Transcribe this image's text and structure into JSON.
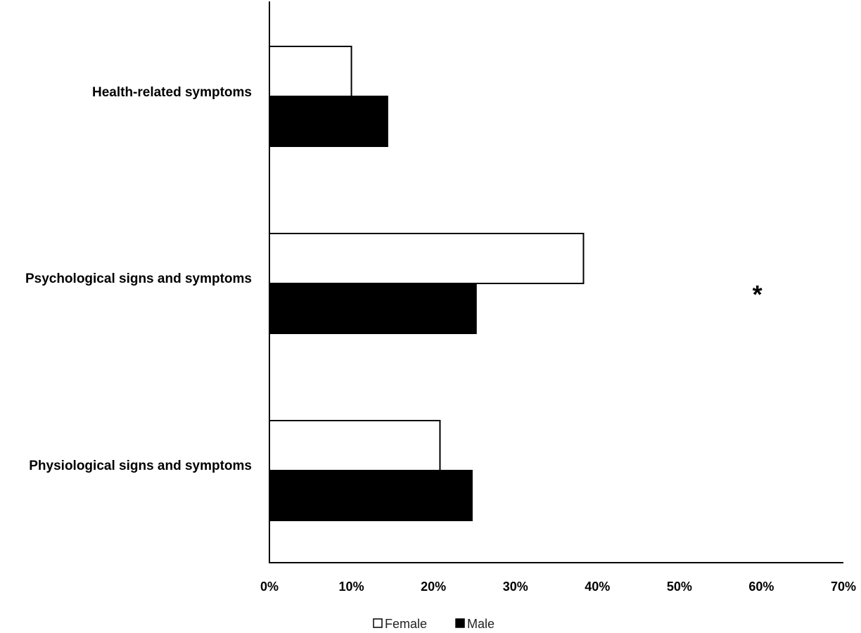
{
  "chart_data": {
    "type": "bar",
    "orientation": "horizontal",
    "categories": [
      "Health-related symptoms",
      "Psychological signs and symptoms",
      "Physiological signs and symptoms"
    ],
    "series": [
      {
        "name": "Female",
        "values": [
          10,
          38.3,
          20.8
        ],
        "fill": "#ffffff",
        "stroke": "#000000"
      },
      {
        "name": "Male",
        "values": [
          14.4,
          25.2,
          24.7
        ],
        "fill": "#000000",
        "stroke": "#000000"
      }
    ],
    "xlim": [
      0,
      70
    ],
    "xticks": [
      0,
      10,
      20,
      30,
      40,
      50,
      60,
      70
    ],
    "tick_format": "%",
    "annotations": [
      {
        "text": "*",
        "category": "Psychological signs and symptoms",
        "x": 59.5
      }
    ],
    "legend": {
      "position": "bottom-center",
      "entries": [
        "Female",
        "Male"
      ]
    },
    "grid": false,
    "title": "",
    "xlabel": "",
    "ylabel": ""
  }
}
